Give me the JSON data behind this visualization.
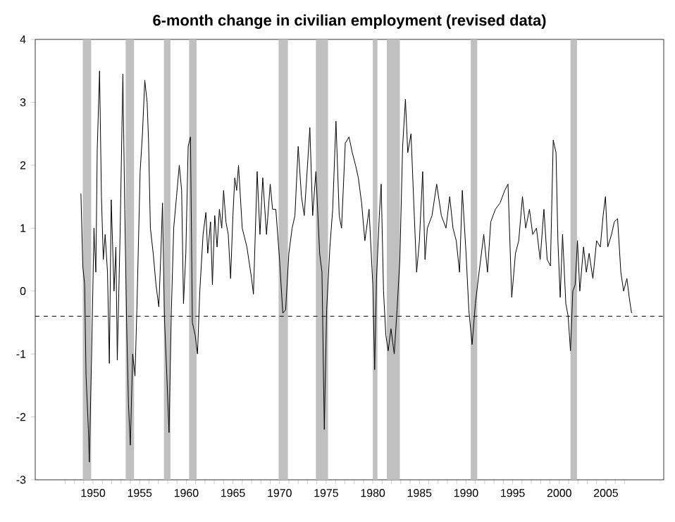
{
  "chart_data": {
    "type": "line",
    "title": "6-month change in civilian employment (revised data)",
    "xlim": [
      1943.8,
      2011.2
    ],
    "ylim": [
      -3,
      4
    ],
    "yticks": [
      -3,
      -2,
      -1,
      0,
      1,
      2,
      3,
      4
    ],
    "xticks": [
      {
        "value": 1947,
        "label": null
      },
      {
        "value": 1948,
        "label": null
      },
      {
        "value": 1949,
        "label": null
      },
      1950,
      {
        "value": 1951,
        "label": null
      },
      {
        "value": 1952,
        "label": null
      },
      {
        "value": 1953,
        "label": null
      },
      {
        "value": 1954,
        "label": null
      },
      1955,
      {
        "value": 1956,
        "label": null
      },
      {
        "value": 1957,
        "label": null
      },
      {
        "value": 1958,
        "label": null
      },
      {
        "value": 1959,
        "label": null
      },
      1960,
      {
        "value": 1961,
        "label": null
      },
      {
        "value": 1962,
        "label": null
      },
      {
        "value": 1963,
        "label": null
      },
      {
        "value": 1964,
        "label": null
      },
      1965,
      {
        "value": 1966,
        "label": null
      },
      {
        "value": 1967,
        "label": null
      },
      {
        "value": 1968,
        "label": null
      },
      {
        "value": 1969,
        "label": null
      },
      1970,
      {
        "value": 1971,
        "label": null
      },
      {
        "value": 1972,
        "label": null
      },
      {
        "value": 1973,
        "label": null
      },
      {
        "value": 1974,
        "label": null
      },
      1975,
      {
        "value": 1976,
        "label": null
      },
      {
        "value": 1977,
        "label": null
      },
      {
        "value": 1978,
        "label": null
      },
      {
        "value": 1979,
        "label": null
      },
      1980,
      {
        "value": 1981,
        "label": null
      },
      {
        "value": 1982,
        "label": null
      },
      {
        "value": 1983,
        "label": null
      },
      {
        "value": 1984,
        "label": null
      },
      1985,
      {
        "value": 1986,
        "label": null
      },
      {
        "value": 1987,
        "label": null
      },
      {
        "value": 1988,
        "label": null
      },
      {
        "value": 1989,
        "label": null
      },
      1990,
      {
        "value": 1991,
        "label": null
      },
      {
        "value": 1992,
        "label": null
      },
      {
        "value": 1993,
        "label": null
      },
      {
        "value": 1994,
        "label": null
      },
      1995,
      {
        "value": 1996,
        "label": null
      },
      {
        "value": 1997,
        "label": null
      },
      {
        "value": 1998,
        "label": null
      },
      {
        "value": 1999,
        "label": null
      },
      2000,
      {
        "value": 2001,
        "label": null
      },
      {
        "value": 2002,
        "label": null
      },
      {
        "value": 2003,
        "label": null
      },
      {
        "value": 2004,
        "label": null
      },
      2005,
      {
        "value": 2006,
        "label": null
      },
      {
        "value": 2007,
        "label": null
      }
    ],
    "grid": false,
    "marker": "none",
    "line_style": "solid",
    "bands": [
      {
        "axis": "x",
        "from": 1948.9,
        "to": 1949.8,
        "color": "#c0c0c0"
      },
      {
        "axis": "x",
        "from": 1953.5,
        "to": 1954.4,
        "color": "#c0c0c0"
      },
      {
        "axis": "x",
        "from": 1957.6,
        "to": 1958.3,
        "color": "#c0c0c0"
      },
      {
        "axis": "x",
        "from": 1960.3,
        "to": 1961.1,
        "color": "#c0c0c0"
      },
      {
        "axis": "x",
        "from": 1969.9,
        "to": 1970.9,
        "color": "#c0c0c0"
      },
      {
        "axis": "x",
        "from": 1973.9,
        "to": 1975.2,
        "color": "#c0c0c0"
      },
      {
        "axis": "x",
        "from": 1980.0,
        "to": 1980.5,
        "color": "#c0c0c0"
      },
      {
        "axis": "x",
        "from": 1981.5,
        "to": 1982.9,
        "color": "#c0c0c0"
      },
      {
        "axis": "x",
        "from": 1990.5,
        "to": 1991.2,
        "color": "#c0c0c0"
      },
      {
        "axis": "x",
        "from": 2001.2,
        "to": 2001.9,
        "color": "#c0c0c0"
      }
    ],
    "ref_lines": [
      {
        "axis": "y",
        "value": -0.4,
        "color": "#000000",
        "line_style": "dashed"
      }
    ],
    "series": [
      {
        "color": "#000000",
        "x": [
          1948.7,
          1948.9,
          1949.1,
          1949.25,
          1949.5,
          1949.6,
          1949.85,
          1950.1,
          1950.3,
          1950.45,
          1950.7,
          1950.9,
          1951.1,
          1951.3,
          1951.55,
          1951.75,
          1951.95,
          1952.25,
          1952.45,
          1952.6,
          1952.9,
          1953.2,
          1953.4,
          1953.6,
          1953.8,
          1954.0,
          1954.25,
          1954.5,
          1954.7,
          1955.05,
          1955.3,
          1955.55,
          1955.8,
          1955.95,
          1956.15,
          1956.45,
          1956.75,
          1957.05,
          1957.25,
          1957.45,
          1957.65,
          1957.9,
          1958.15,
          1958.4,
          1958.65,
          1958.95,
          1959.25,
          1959.5,
          1959.7,
          1959.95,
          1960.2,
          1960.45,
          1960.65,
          1960.95,
          1961.2,
          1961.45,
          1961.8,
          1962.1,
          1962.3,
          1962.6,
          1962.8,
          1963.05,
          1963.3,
          1963.55,
          1963.8,
          1964.0,
          1964.25,
          1964.5,
          1964.75,
          1965.0,
          1965.2,
          1965.4,
          1965.6,
          1966.0,
          1966.5,
          1967.0,
          1967.2,
          1967.6,
          1967.9,
          1968.2,
          1968.6,
          1969.0,
          1969.25,
          1969.6,
          1970.0,
          1970.35,
          1970.65,
          1971.0,
          1971.35,
          1971.65,
          1972.0,
          1972.35,
          1972.65,
          1973.0,
          1973.25,
          1973.55,
          1973.9,
          1974.3,
          1974.55,
          1974.8,
          1975.05,
          1975.4,
          1975.7,
          1976.05,
          1976.4,
          1976.65,
          1977.05,
          1977.45,
          1977.8,
          1978.15,
          1978.45,
          1978.8,
          1979.15,
          1979.6,
          1980.0,
          1980.2,
          1980.4,
          1980.7,
          1980.9,
          1981.15,
          1981.4,
          1981.65,
          1981.95,
          1982.3,
          1982.6,
          1982.9,
          1983.2,
          1983.5,
          1983.75,
          1984.1,
          1984.45,
          1984.7,
          1985.0,
          1985.35,
          1985.6,
          1985.85,
          1986.35,
          1986.85,
          1987.35,
          1987.85,
          1988.25,
          1988.6,
          1988.95,
          1989.3,
          1989.6,
          1990.0,
          1990.3,
          1990.65,
          1991.0,
          1991.4,
          1991.9,
          1992.3,
          1992.65,
          1993.15,
          1993.65,
          1994.15,
          1994.5,
          1994.9,
          1995.3,
          1995.65,
          1996.05,
          1996.4,
          1996.8,
          1997.15,
          1997.55,
          1997.95,
          1998.35,
          1998.7,
          1999.05,
          1999.35,
          1999.65,
          1999.85,
          2000.1,
          2000.35,
          2000.7,
          2000.95,
          2001.2,
          2001.45,
          2001.7,
          2001.95,
          2002.2,
          2002.6,
          2002.9,
          2003.2,
          2003.6,
          2004.0,
          2004.4,
          2004.7,
          2004.95,
          2005.2,
          2005.6,
          2005.9,
          2006.25,
          2006.6,
          2006.9,
          2007.25,
          2007.5,
          2007.75
        ],
        "values": [
          1.55,
          0.4,
          0.1,
          -1.35,
          -2.2,
          -2.72,
          -1.0,
          1.0,
          0.3,
          2.25,
          3.5,
          1.5,
          0.5,
          0.9,
          0.3,
          -1.15,
          1.45,
          0.0,
          0.7,
          -1.1,
          0.9,
          3.45,
          1.3,
          -0.5,
          -1.8,
          -2.45,
          -1.0,
          -1.35,
          -0.3,
          1.9,
          2.5,
          3.35,
          3.0,
          2.4,
          1.0,
          0.6,
          0.1,
          -0.25,
          0.5,
          1.4,
          -0.4,
          -1.3,
          -2.25,
          -0.3,
          1.0,
          1.5,
          2.0,
          1.6,
          -0.2,
          0.6,
          2.3,
          2.45,
          -0.5,
          -0.7,
          -1.0,
          0.0,
          0.9,
          1.25,
          0.6,
          1.1,
          0.1,
          1.2,
          0.7,
          1.3,
          1.0,
          1.6,
          1.1,
          0.9,
          0.2,
          1.2,
          1.8,
          1.6,
          2.0,
          1.0,
          0.7,
          0.2,
          -0.05,
          1.9,
          0.9,
          1.8,
          0.9,
          1.7,
          1.3,
          1.3,
          0.5,
          -0.35,
          -0.3,
          0.6,
          1.0,
          1.2,
          2.3,
          1.5,
          1.2,
          2.0,
          2.6,
          1.2,
          1.9,
          0.6,
          0.3,
          -2.2,
          -0.3,
          0.7,
          1.3,
          2.7,
          1.2,
          1.0,
          2.35,
          2.45,
          2.2,
          2.0,
          1.8,
          1.4,
          0.8,
          1.3,
          0.1,
          -1.25,
          0.2,
          1.2,
          1.7,
          0.0,
          -0.7,
          -0.95,
          -0.6,
          -1.0,
          -0.3,
          0.5,
          2.3,
          3.05,
          2.2,
          2.5,
          1.2,
          0.3,
          0.8,
          1.9,
          0.5,
          1.0,
          1.2,
          1.7,
          1.2,
          1.0,
          1.5,
          1.0,
          0.8,
          0.3,
          1.6,
          0.6,
          -0.3,
          -0.85,
          -0.2,
          0.3,
          0.9,
          0.3,
          1.1,
          1.3,
          1.4,
          1.6,
          1.7,
          -0.1,
          0.6,
          0.8,
          1.5,
          1.0,
          1.3,
          0.9,
          1.0,
          0.5,
          1.3,
          0.5,
          0.4,
          2.4,
          2.2,
          0.8,
          -0.1,
          0.9,
          -0.2,
          -0.4,
          -0.95,
          0.0,
          0.1,
          0.8,
          0.0,
          0.7,
          0.3,
          0.6,
          0.2,
          0.8,
          0.7,
          1.2,
          1.5,
          0.7,
          0.9,
          1.1,
          1.15,
          0.3,
          0.0,
          0.2,
          -0.1,
          -0.35
        ]
      }
    ]
  }
}
